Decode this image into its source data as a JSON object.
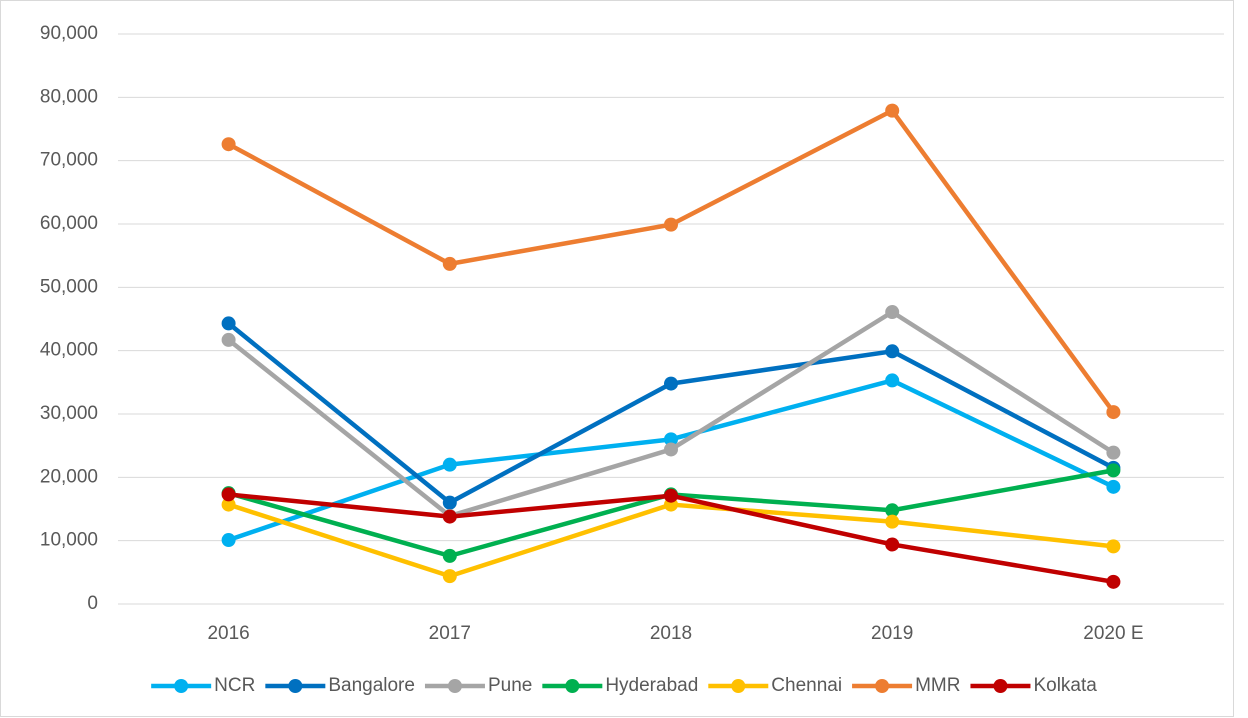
{
  "chart_data": {
    "type": "line",
    "categories": [
      "2016",
      "2017",
      "2018",
      "2019",
      "2020 E"
    ],
    "series": [
      {
        "name": "NCR",
        "color": "#00b0f0",
        "values": [
          10100,
          22000,
          26000,
          35300,
          18500
        ]
      },
      {
        "name": "Bangalore",
        "color": "#0070c0",
        "values": [
          44300,
          16000,
          34800,
          39900,
          21500
        ]
      },
      {
        "name": "Pune",
        "color": "#a5a5a5",
        "values": [
          41700,
          13900,
          24400,
          46100,
          23900
        ]
      },
      {
        "name": "Hyderabad",
        "color": "#00b050",
        "values": [
          17500,
          7600,
          17300,
          14800,
          21100
        ]
      },
      {
        "name": "Chennai",
        "color": "#ffc000",
        "values": [
          15700,
          4400,
          15700,
          13000,
          9100
        ]
      },
      {
        "name": "MMR",
        "color": "#ed7d31",
        "values": [
          72600,
          53700,
          59900,
          77900,
          30300
        ]
      },
      {
        "name": "Kolkata",
        "color": "#c00000",
        "values": [
          17300,
          13800,
          17100,
          9400,
          3500
        ]
      }
    ],
    "ylim": [
      0,
      90000
    ],
    "yticks": [
      0,
      {
        "value": 10000,
        "label": "10,000"
      },
      {
        "value": 20000,
        "label": "20,000"
      },
      {
        "value": 30000,
        "label": "30,000"
      },
      {
        "value": 40000,
        "label": "40,000"
      },
      {
        "value": 50000,
        "label": "50,000"
      },
      {
        "value": 60000,
        "label": "60,000"
      },
      {
        "value": 70000,
        "label": "70,000"
      },
      {
        "value": 80000,
        "label": "80,000"
      },
      {
        "value": 90000,
        "label": "90,000"
      }
    ],
    "grid": true,
    "legend": "bottom"
  }
}
